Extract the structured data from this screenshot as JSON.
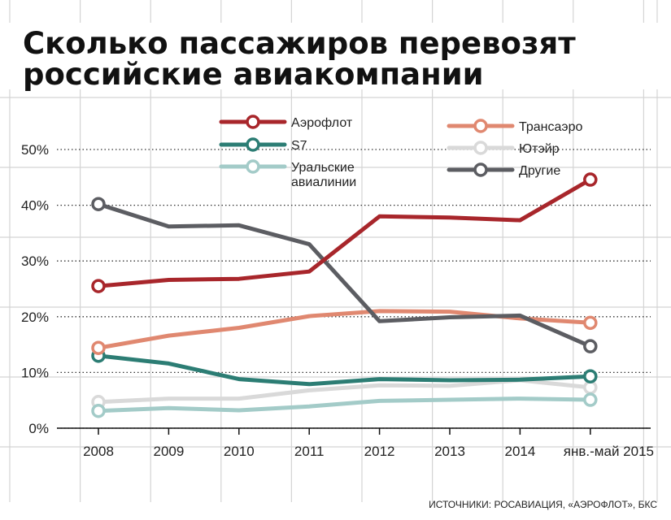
{
  "chart_data": {
    "type": "line",
    "title_lines": [
      "Сколько пассажиров перевозят",
      "российские авиакомпании"
    ],
    "xlabel": "",
    "ylabel": "",
    "categories": [
      "2008",
      "2009",
      "2010",
      "2011",
      "2012",
      "2013",
      "2014",
      "янв.-май 2015"
    ],
    "y_ticks": [
      "0%",
      "10%",
      "20%",
      "30%",
      "40%",
      "50%"
    ],
    "ylim": [
      0,
      50
    ],
    "grid": true,
    "legend_position": "top",
    "series": [
      {
        "name": "Аэрофлот",
        "color": "#a8262b",
        "values": [
          25.5,
          26.6,
          26.8,
          28.1,
          38.0,
          37.8,
          37.3,
          44.6
        ]
      },
      {
        "name": "S7",
        "color": "#2c7d74",
        "values": [
          13.0,
          11.6,
          8.8,
          7.9,
          8.8,
          8.6,
          8.7,
          9.3
        ]
      },
      {
        "name": "Уральские авиалинии",
        "color": "#a3cbc8",
        "values": [
          3.1,
          3.6,
          3.2,
          3.9,
          4.9,
          5.1,
          5.3,
          5.1
        ]
      },
      {
        "name": "Трансаэро",
        "color": "#e08870",
        "values": [
          14.4,
          16.6,
          18.0,
          20.1,
          21.0,
          20.9,
          19.7,
          18.9
        ]
      },
      {
        "name": "Ютэйр",
        "color": "#d9d9d9",
        "values": [
          4.7,
          5.3,
          5.3,
          6.8,
          7.7,
          7.6,
          8.6,
          7.3
        ]
      },
      {
        "name": "Другие",
        "color": "#5c5d62",
        "values": [
          40.2,
          36.2,
          36.4,
          33.0,
          19.2,
          19.9,
          20.2,
          14.7
        ]
      }
    ],
    "source": "ИСТОЧНИКИ: РОСАВИАЦИЯ, «АЭРОФЛОТ», БКС"
  },
  "legend": [
    {
      "label_lines": [
        "Аэрофлот"
      ],
      "color": "#a8262b"
    },
    {
      "label_lines": [
        "S7"
      ],
      "color": "#2c7d74"
    },
    {
      "label_lines": [
        "Уральские",
        "авиалинии"
      ],
      "color": "#a3cbc8"
    },
    {
      "label_lines": [
        "Трансаэро"
      ],
      "color": "#e08870"
    },
    {
      "label_lines": [
        "Ютэйр"
      ],
      "color": "#d9d9d9"
    },
    {
      "label_lines": [
        "Другие"
      ],
      "color": "#5c5d62"
    }
  ],
  "colors": {
    "grid_line": "#d4d4d4",
    "dotted_line": "#333333",
    "axis": "#111111"
  }
}
